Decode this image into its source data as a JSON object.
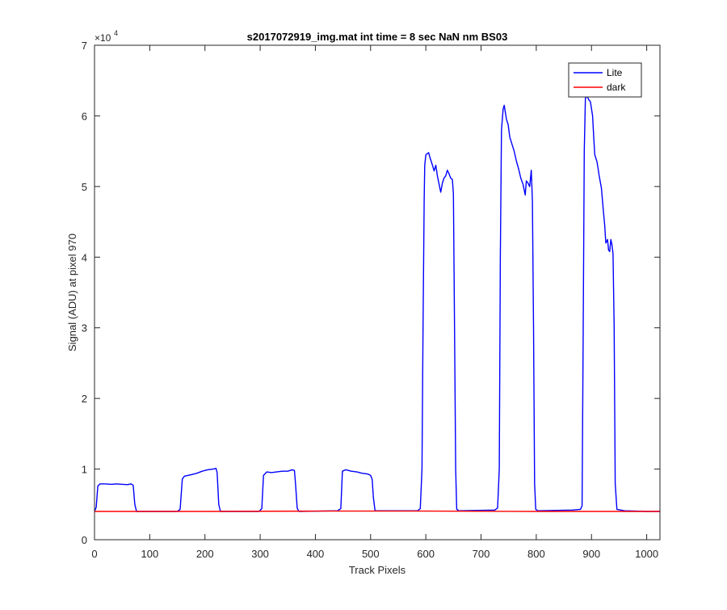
{
  "chart_data": {
    "type": "line",
    "title": "s2017072919_img.mat int time = 8 sec  NaN nm BS03",
    "xlabel": "Track Pixels",
    "ylabel": "Signal (ADU) at pixel 970",
    "xlim": [
      0,
      1024
    ],
    "ylim": [
      0,
      70000
    ],
    "y_exponent_label": "×10",
    "y_exponent_power": "4",
    "xticks": [
      0,
      100,
      200,
      300,
      400,
      500,
      600,
      700,
      800,
      900,
      1000
    ],
    "xtick_labels": [
      "0",
      "100",
      "200",
      "300",
      "400",
      "500",
      "600",
      "700",
      "800",
      "900",
      "1000"
    ],
    "yticks": [
      0,
      10000,
      20000,
      30000,
      40000,
      50000,
      60000,
      70000
    ],
    "ytick_labels": [
      "0",
      "1",
      "2",
      "3",
      "4",
      "5",
      "6",
      "7"
    ],
    "grid": false,
    "legend_position": "top-right",
    "series": [
      {
        "name": "Lite",
        "color": "#0000ff",
        "points": [
          [
            0,
            4000
          ],
          [
            3,
            4600
          ],
          [
            6,
            7600
          ],
          [
            10,
            7900
          ],
          [
            20,
            7900
          ],
          [
            30,
            7850
          ],
          [
            40,
            7900
          ],
          [
            50,
            7850
          ],
          [
            60,
            7800
          ],
          [
            66,
            7900
          ],
          [
            70,
            7700
          ],
          [
            73,
            5000
          ],
          [
            76,
            4000
          ],
          [
            150,
            4000
          ],
          [
            155,
            4300
          ],
          [
            159,
            8600
          ],
          [
            163,
            9000
          ],
          [
            175,
            9200
          ],
          [
            185,
            9400
          ],
          [
            195,
            9700
          ],
          [
            205,
            9900
          ],
          [
            215,
            10000
          ],
          [
            220,
            10100
          ],
          [
            222,
            9500
          ],
          [
            225,
            5000
          ],
          [
            228,
            4000
          ],
          [
            298,
            4000
          ],
          [
            303,
            4400
          ],
          [
            306,
            9100
          ],
          [
            312,
            9600
          ],
          [
            320,
            9500
          ],
          [
            330,
            9600
          ],
          [
            340,
            9700
          ],
          [
            350,
            9700
          ],
          [
            358,
            9900
          ],
          [
            362,
            9800
          ],
          [
            364,
            8000
          ],
          [
            367,
            4500
          ],
          [
            370,
            4000
          ],
          [
            440,
            4100
          ],
          [
            446,
            4400
          ],
          [
            449,
            9700
          ],
          [
            455,
            9900
          ],
          [
            465,
            9700
          ],
          [
            475,
            9600
          ],
          [
            485,
            9400
          ],
          [
            495,
            9300
          ],
          [
            500,
            9100
          ],
          [
            503,
            8500
          ],
          [
            505,
            6000
          ],
          [
            508,
            4100
          ],
          [
            585,
            4100
          ],
          [
            590,
            4400
          ],
          [
            593,
            10000
          ],
          [
            595,
            30000
          ],
          [
            597,
            48000
          ],
          [
            598,
            53000
          ],
          [
            600,
            54500
          ],
          [
            605,
            54800
          ],
          [
            608,
            54000
          ],
          [
            612,
            53000
          ],
          [
            615,
            52200
          ],
          [
            618,
            53000
          ],
          [
            621,
            51500
          ],
          [
            624,
            50300
          ],
          [
            627,
            49200
          ],
          [
            630,
            50500
          ],
          [
            633,
            51200
          ],
          [
            636,
            51500
          ],
          [
            639,
            52300
          ],
          [
            642,
            51800
          ],
          [
            645,
            51200
          ],
          [
            648,
            51000
          ],
          [
            650,
            49000
          ],
          [
            652,
            30000
          ],
          [
            654,
            10000
          ],
          [
            656,
            4300
          ],
          [
            660,
            4100
          ],
          [
            725,
            4200
          ],
          [
            730,
            4500
          ],
          [
            733,
            10000
          ],
          [
            735,
            40000
          ],
          [
            737,
            58000
          ],
          [
            740,
            61000
          ],
          [
            742,
            61500
          ],
          [
            744,
            60500
          ],
          [
            746,
            59500
          ],
          [
            749,
            58800
          ],
          [
            752,
            57000
          ],
          [
            756,
            56000
          ],
          [
            760,
            55000
          ],
          [
            764,
            53600
          ],
          [
            768,
            52500
          ],
          [
            772,
            51200
          ],
          [
            776,
            50300
          ],
          [
            780,
            48800
          ],
          [
            782,
            50800
          ],
          [
            785,
            50500
          ],
          [
            788,
            50000
          ],
          [
            791,
            52300
          ],
          [
            793,
            48000
          ],
          [
            795,
            30000
          ],
          [
            797,
            8000
          ],
          [
            799,
            4300
          ],
          [
            803,
            4100
          ],
          [
            865,
            4200
          ],
          [
            880,
            4300
          ],
          [
            883,
            4800
          ],
          [
            885,
            30000
          ],
          [
            887,
            55000
          ],
          [
            889,
            62500
          ],
          [
            892,
            62800
          ],
          [
            895,
            62300
          ],
          [
            898,
            62000
          ],
          [
            902,
            60000
          ],
          [
            904,
            57000
          ],
          [
            906,
            54500
          ],
          [
            910,
            53500
          ],
          [
            914,
            51500
          ],
          [
            918,
            49800
          ],
          [
            921,
            47000
          ],
          [
            924,
            44500
          ],
          [
            926,
            42000
          ],
          [
            929,
            42500
          ],
          [
            931,
            41000
          ],
          [
            933,
            40800
          ],
          [
            935,
            42500
          ],
          [
            937,
            41800
          ],
          [
            939,
            40500
          ],
          [
            941,
            30000
          ],
          [
            943,
            8000
          ],
          [
            946,
            4300
          ],
          [
            960,
            4100
          ],
          [
            1000,
            4000
          ],
          [
            1024,
            4000
          ]
        ]
      },
      {
        "name": "dark",
        "color": "#ff0000",
        "points": [
          [
            0,
            4000
          ],
          [
            200,
            4000
          ],
          [
            400,
            4050
          ],
          [
            600,
            4050
          ],
          [
            800,
            4000
          ],
          [
            1024,
            4000
          ]
        ]
      }
    ]
  }
}
